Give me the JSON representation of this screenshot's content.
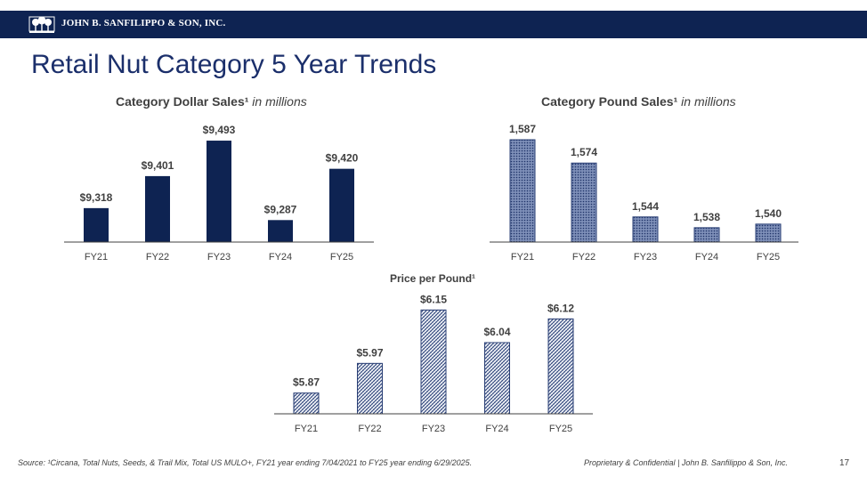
{
  "header": {
    "company": "JOHN B. SANFILIPPO & SON, INC.",
    "logo_icon": "tree-orchard-icon",
    "bar_color": "#0e2352"
  },
  "page_title": "Retail Nut Category 5 Year Trends",
  "chart_data": [
    {
      "id": "dollar_sales",
      "type": "bar",
      "title_bold": "Category Dollar Sales¹",
      "title_italic": " in millions",
      "categories": [
        "FY21",
        "FY22",
        "FY23",
        "FY24",
        "FY25"
      ],
      "values": [
        9318,
        9401,
        9493,
        9287,
        9420
      ],
      "value_labels": [
        "$9,318",
        "$9,401",
        "$9,493",
        "$9,287",
        "$9,420"
      ],
      "ylim": [
        9230,
        9500
      ],
      "fill": "#0e2352",
      "pattern": "solid"
    },
    {
      "id": "pound_sales",
      "type": "bar",
      "title_bold": "Category Pound Sales¹",
      "title_italic": " in millions",
      "categories": [
        "FY21",
        "FY22",
        "FY23",
        "FY24",
        "FY25"
      ],
      "values": [
        1587,
        1574,
        1544,
        1538,
        1540
      ],
      "value_labels": [
        "1,587",
        "1,574",
        "1,544",
        "1,538",
        "1,540"
      ],
      "ylim": [
        1530,
        1588
      ],
      "fill": "#2a3f75",
      "pattern": "dots"
    },
    {
      "id": "price_per_pound",
      "type": "bar",
      "title_bold": "Price per Pound¹",
      "title_italic": "",
      "categories": [
        "FY21",
        "FY22",
        "FY23",
        "FY24",
        "FY25"
      ],
      "values": [
        5.87,
        5.97,
        6.15,
        6.04,
        6.12
      ],
      "value_labels": [
        "$5.87",
        "$5.97",
        "$6.15",
        "$6.04",
        "$6.12"
      ],
      "ylim": [
        5.8,
        6.16
      ],
      "fill": "#2a3f75",
      "pattern": "weave"
    }
  ],
  "footer": {
    "source": "Source: ¹Circana, Total Nuts, Seeds, & Trail Mix, Total US MULO+, FY21 year ending 7/04/2021 to FY25 year ending 6/29/2025.",
    "confidential": "Proprietary & Confidential | John B. Sanfilippo & Son, Inc.",
    "page_number": "17"
  }
}
